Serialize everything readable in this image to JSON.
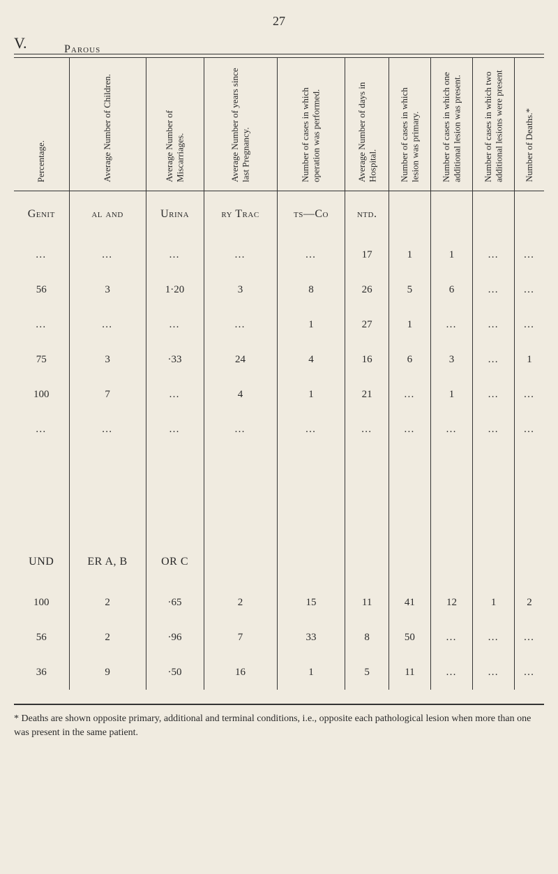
{
  "page_number": "27",
  "section_letter": "V.",
  "parous_label": "Parous",
  "headers": [
    "Percentage.",
    "Average Number of Children.",
    "Average Number of Miscarriages.",
    "Average Number of years since last Pregnancy.",
    "Number of cases in which operation was performed.",
    "Average Number of days in Hospital.",
    "Number of cases in which lesion was primary.",
    "Number of cases in which one additional lesion was present.",
    "Number of cases in which two additional lesions were present",
    "Number of Deaths.*"
  ],
  "section_title_1": [
    "Genit",
    "al and",
    "Urina",
    "ry Trac",
    "ts—Co",
    "ntd.",
    "",
    "",
    "",
    ""
  ],
  "rows_1": [
    [
      "…",
      "…",
      "…",
      "…",
      "…",
      "17",
      "1",
      "1",
      "…",
      "…"
    ],
    [
      "56",
      "3",
      "1·20",
      "3",
      "8",
      "26",
      "5",
      "6",
      "…",
      "…"
    ],
    [
      "…",
      "…",
      "…",
      "…",
      "1",
      "27",
      "1",
      "…",
      "…",
      "…"
    ],
    [
      "75",
      "3",
      "·33",
      "24",
      "4",
      "16",
      "6",
      "3",
      "…",
      "1"
    ],
    [
      "100",
      "7",
      "…",
      "4",
      "1",
      "21",
      "…",
      "1",
      "…",
      "…"
    ]
  ],
  "blank_row": [
    "…",
    "…",
    "…",
    "…",
    "…",
    "…",
    "…",
    "…",
    "…",
    "…"
  ],
  "section_title_2": [
    "UND",
    "ER A, B",
    "OR C",
    "",
    "",
    "",
    "",
    "",
    "",
    ""
  ],
  "rows_2": [
    [
      "100",
      "2",
      "·65",
      "2",
      "15",
      "11",
      "41",
      "12",
      "1",
      "2"
    ],
    [
      "56",
      "2",
      "·96",
      "7",
      "33",
      "8",
      "50",
      "…",
      "…",
      "…"
    ],
    [
      "36",
      "9",
      "·50",
      "16",
      "1",
      "5",
      "11",
      "…",
      "…",
      "…"
    ]
  ],
  "footnote": "* Deaths are shown opposite primary, additional and terminal conditions, i.e., opposite each pathological lesion when more than one was present in the same patient.",
  "colors": {
    "background": "#f0ebe0",
    "text": "#2a2a2a",
    "rule": "#333333"
  }
}
